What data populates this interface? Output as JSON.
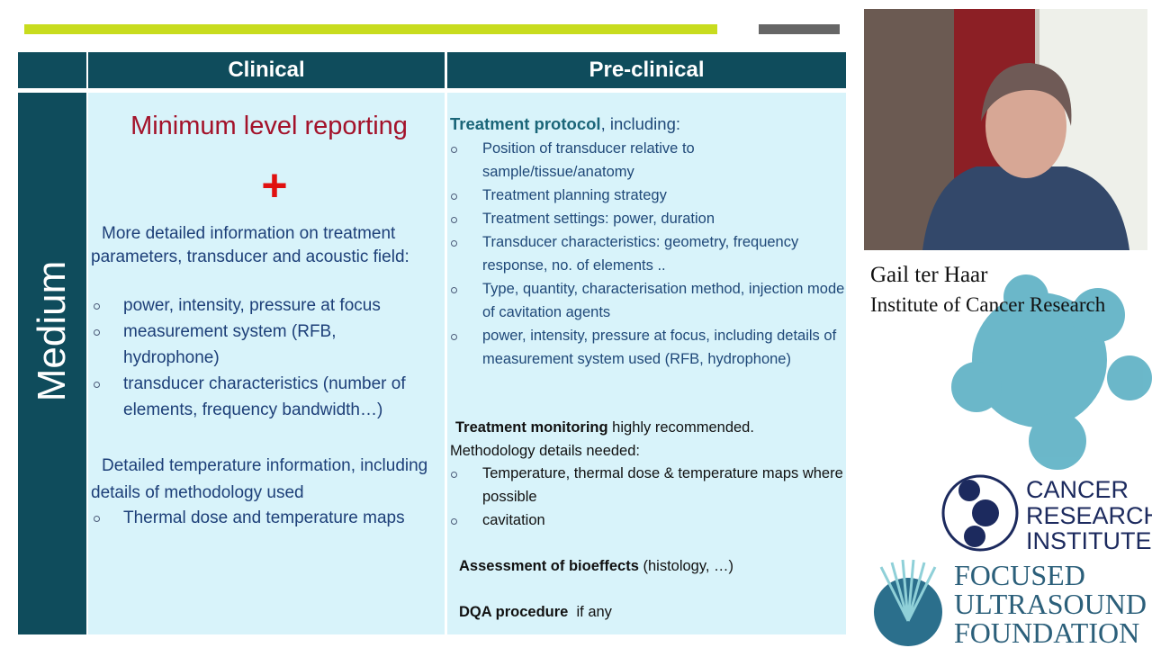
{
  "slide": {
    "header": {
      "clinical": "Clinical",
      "preclinical": "Pre-clinical"
    },
    "row_label": "Medium",
    "clinical": {
      "heading": "Minimum level reporting",
      "plus": "+",
      "intro": "More detailed information on treatment parameters, transducer and acoustic field:",
      "bullets": [
        "power, intensity, pressure at focus",
        "measurement system (RFB, hydrophone)",
        "transducer characteristics (number of elements, frequency bandwidth…)"
      ],
      "temp_intro": "Detailed temperature information, including details of methodology used",
      "temp_bullets": [
        "Thermal dose and temperature maps"
      ]
    },
    "preclinical": {
      "protocol_bold": "Treatment protocol",
      "protocol_rest": ", including:",
      "protocol_bullets": [
        "Position of transducer relative to sample/tissue/anatomy",
        "Treatment planning strategy",
        "Treatment settings: power, duration",
        "Transducer characteristics: geometry, frequency response,  no. of elements ..",
        "Type, quantity, characterisation method, injection mode of cavitation agents",
        "power, intensity, pressure at focus, including details of measurement system used (RFB, hydrophone)"
      ],
      "monitoring_bold": "Treatment monitoring",
      "monitoring_rest": " highly recommended.",
      "monitoring_line2": "Methodology details needed:",
      "monitoring_bullets": [
        "Temperature, thermal dose & temperature maps where possible",
        "cavitation"
      ],
      "bioeffects_bold": "Assessment of bioeffects",
      "bioeffects_rest": " (histology, …)",
      "dqa_bold": "DQA procedure",
      "dqa_rest": "  if any"
    }
  },
  "speaker": {
    "name": "Gail ter Haar",
    "affiliation": "Institute of Cancer Research"
  },
  "logos": {
    "cri": [
      "CANCER",
      "RESEARCH",
      "INSTITUTE."
    ],
    "fus": [
      "FOCUSED",
      "ULTRASOUND",
      "FOUNDATION"
    ]
  }
}
